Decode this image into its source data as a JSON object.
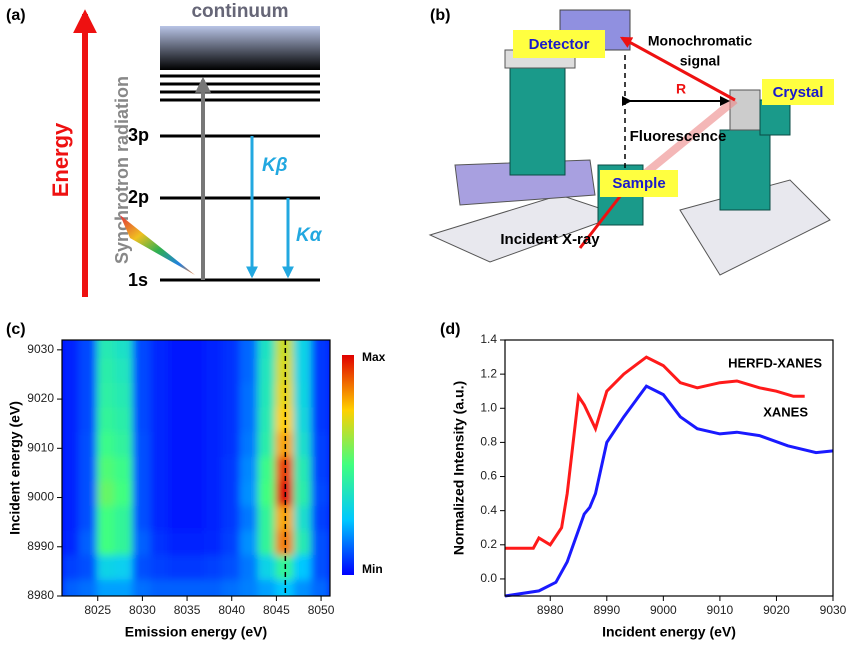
{
  "panel_a": {
    "label": "(a)",
    "energy": "Energy",
    "continuum": "continuum",
    "synchrotron": "Synchrotron radiation",
    "levels": [
      "3p",
      "2p",
      "1s"
    ],
    "k_beta": "Kβ",
    "k_alpha": "Kα"
  },
  "panel_b": {
    "label": "(b)",
    "detector": "Detector",
    "monochromatic_signal": [
      "Monochromatic",
      "signal"
    ],
    "r": "R",
    "crystal": "Crystal",
    "fluorescence": "Fluorescence",
    "sample": "Sample",
    "incident": "Incident X-ray"
  },
  "chart_data": [
    {
      "type": "heatmap",
      "panel_label": "(c)",
      "x_label": "Emission energy (eV)",
      "y_label": "Incident energy (eV)",
      "xlim": [
        8021,
        8051
      ],
      "ylim": [
        8980,
        9032
      ],
      "xticks": [
        8025,
        8030,
        8035,
        8040,
        8045,
        8050
      ],
      "yticks": [
        8980,
        8990,
        9000,
        9010,
        9020,
        9030
      ],
      "colormap": "jet",
      "colorbar_labels": [
        "Max",
        "Min"
      ],
      "vline": 8046,
      "x": [
        8022,
        8024,
        8026,
        8028,
        8030,
        8032,
        8034,
        8036,
        8038,
        8040,
        8042,
        8044,
        8046,
        8048,
        8050
      ],
      "y": [
        8981,
        8986,
        8991,
        8996,
        9001,
        9006,
        9011,
        9016,
        9021,
        9026,
        9031
      ],
      "z": [
        [
          0.12,
          0.14,
          0.2,
          0.2,
          0.14,
          0.12,
          0.12,
          0.12,
          0.12,
          0.14,
          0.16,
          0.2,
          0.25,
          0.18,
          0.13
        ],
        [
          0.08,
          0.1,
          0.3,
          0.28,
          0.1,
          0.08,
          0.07,
          0.07,
          0.08,
          0.1,
          0.15,
          0.3,
          0.45,
          0.25,
          0.1
        ],
        [
          0.05,
          0.12,
          0.5,
          0.45,
          0.12,
          0.06,
          0.04,
          0.04,
          0.05,
          0.08,
          0.18,
          0.45,
          0.85,
          0.4,
          0.1
        ],
        [
          0.04,
          0.1,
          0.5,
          0.45,
          0.1,
          0.05,
          0.03,
          0.03,
          0.04,
          0.07,
          0.15,
          0.45,
          0.8,
          0.35,
          0.08
        ],
        [
          0.04,
          0.1,
          0.55,
          0.5,
          0.1,
          0.05,
          0.03,
          0.03,
          0.04,
          0.07,
          0.18,
          0.5,
          1.0,
          0.42,
          0.09
        ],
        [
          0.04,
          0.1,
          0.52,
          0.48,
          0.1,
          0.05,
          0.03,
          0.03,
          0.04,
          0.07,
          0.17,
          0.48,
          0.92,
          0.4,
          0.08
        ],
        [
          0.04,
          0.1,
          0.48,
          0.44,
          0.1,
          0.05,
          0.03,
          0.03,
          0.04,
          0.06,
          0.15,
          0.42,
          0.8,
          0.35,
          0.08
        ],
        [
          0.04,
          0.09,
          0.45,
          0.42,
          0.09,
          0.05,
          0.03,
          0.03,
          0.04,
          0.06,
          0.14,
          0.4,
          0.75,
          0.32,
          0.07
        ],
        [
          0.04,
          0.09,
          0.43,
          0.4,
          0.09,
          0.05,
          0.03,
          0.03,
          0.04,
          0.06,
          0.14,
          0.39,
          0.72,
          0.31,
          0.07
        ],
        [
          0.04,
          0.09,
          0.42,
          0.38,
          0.09,
          0.05,
          0.03,
          0.03,
          0.04,
          0.06,
          0.13,
          0.38,
          0.7,
          0.3,
          0.07
        ],
        [
          0.04,
          0.09,
          0.4,
          0.36,
          0.09,
          0.05,
          0.03,
          0.03,
          0.04,
          0.06,
          0.13,
          0.37,
          0.68,
          0.3,
          0.07
        ]
      ]
    },
    {
      "type": "line",
      "panel_label": "(d)",
      "x_label": "Incident energy (eV)",
      "y_label": "Normalized Intensity (a.u.)",
      "xlim": [
        8972,
        9030
      ],
      "ylim": [
        -0.1,
        1.4
      ],
      "xticks": [
        8980,
        8990,
        9000,
        9010,
        9020,
        9030
      ],
      "yticks": [
        {
          "value": 0,
          "label": "0.0"
        },
        {
          "value": 0.2,
          "label": "0.2"
        },
        {
          "value": 0.4,
          "label": "0.4"
        },
        {
          "value": 0.6,
          "label": "0.6"
        },
        {
          "value": 0.8,
          "label": "0.8"
        },
        {
          "value": 1,
          "label": "1.0"
        },
        {
          "value": 1.2,
          "label": "1.2"
        },
        {
          "value": 1.4,
          "label": "1.4"
        }
      ],
      "series": [
        {
          "name": "HERFD-XANES",
          "color": "#ff1a1a",
          "x": [
            8972,
            8977,
            8978,
            8980,
            8982,
            8983,
            8985,
            8986,
            8988,
            8990,
            8993,
            8997,
            9000,
            9003,
            9006,
            9010,
            9013,
            9017,
            9020,
            9023,
            9025
          ],
          "values": [
            0.18,
            0.18,
            0.24,
            0.2,
            0.3,
            0.5,
            1.07,
            1.02,
            0.88,
            1.1,
            1.2,
            1.3,
            1.25,
            1.15,
            1.12,
            1.15,
            1.16,
            1.12,
            1.1,
            1.07,
            1.07
          ]
        },
        {
          "name": "XANES",
          "color": "#1a1aff",
          "x": [
            8972,
            8978,
            8981,
            8983,
            8986,
            8987,
            8988,
            8990,
            8993,
            8997,
            9000,
            9003,
            9006,
            9010,
            9013,
            9017,
            9022,
            9027,
            9030
          ],
          "values": [
            -0.1,
            -0.07,
            -0.02,
            0.1,
            0.38,
            0.42,
            0.5,
            0.8,
            0.95,
            1.13,
            1.08,
            0.95,
            0.88,
            0.85,
            0.86,
            0.84,
            0.78,
            0.74,
            0.75
          ]
        }
      ]
    }
  ]
}
